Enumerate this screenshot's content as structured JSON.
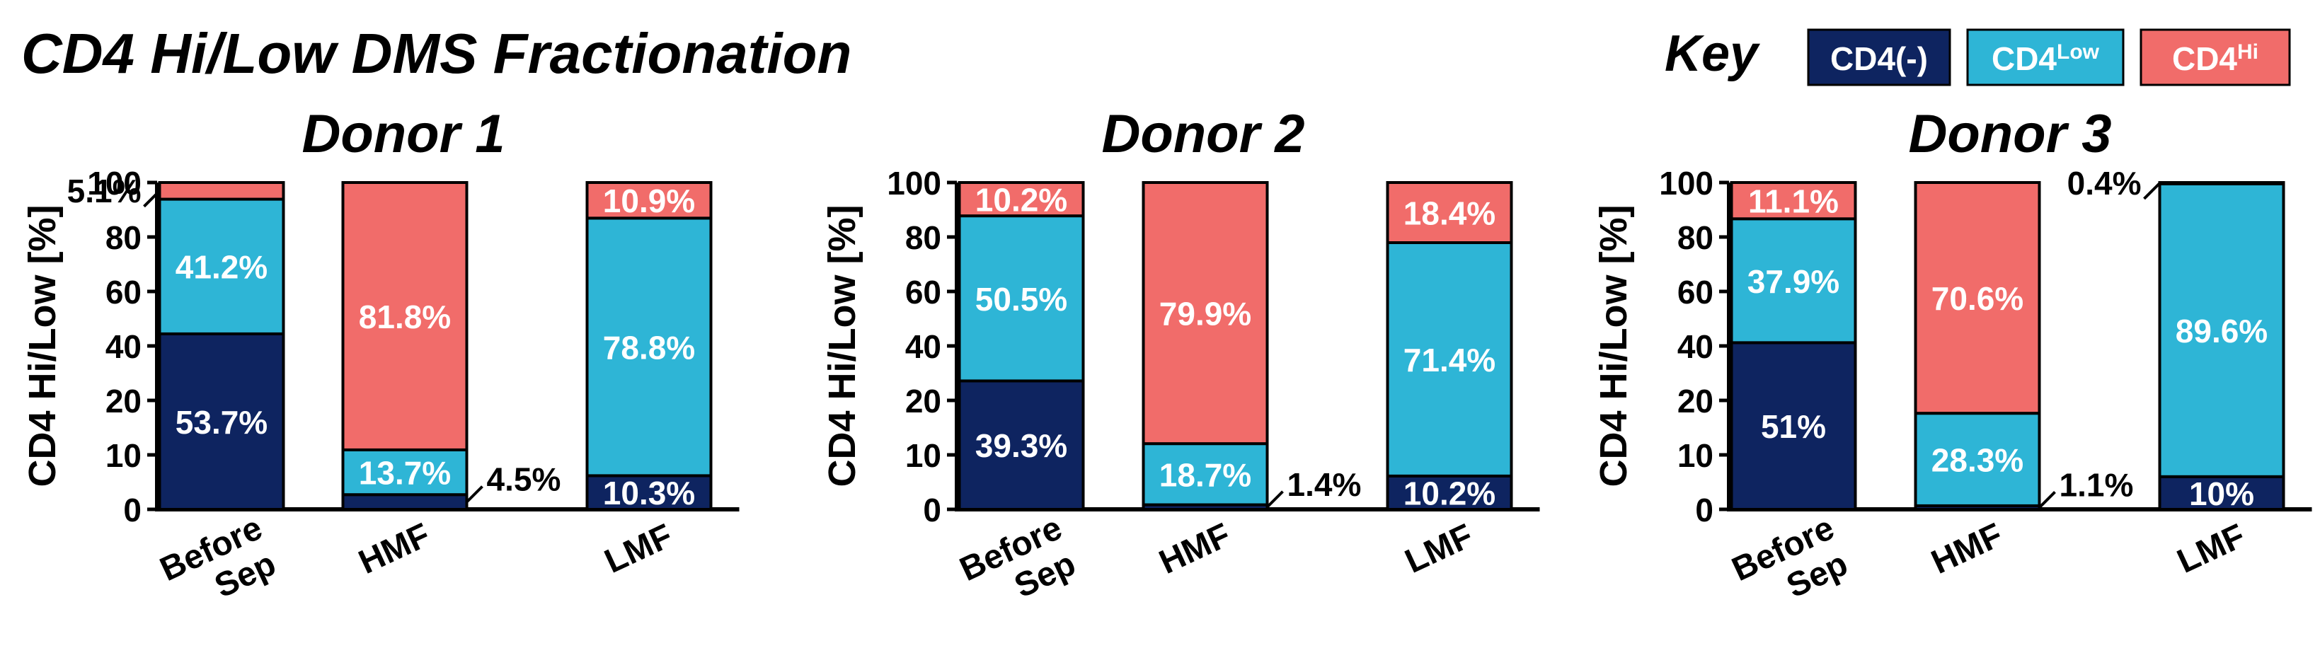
{
  "title": "CD4 Hi/Low DMS Fractionation",
  "key": {
    "label": "Key",
    "items": [
      {
        "base": "CD4(-)",
        "sup": "",
        "color": "#0e2460",
        "text_color": "#ffffff"
      },
      {
        "base": "CD4",
        "sup": "Low",
        "color": "#2eb5d6",
        "text_color": "#ffffff"
      },
      {
        "base": "CD4",
        "sup": "Hi",
        "color": "#f16c6a",
        "text_color": "#ffffff"
      }
    ]
  },
  "chart_data": [
    {
      "type": "bar",
      "stacked": true,
      "title": "Donor 1",
      "ylabel": "CD4 Hi/Low [%]",
      "yticks": [
        "0",
        "10",
        "20",
        "40",
        "60",
        "80",
        "100"
      ],
      "categories": [
        {
          "lines": [
            "Before",
            "Sep"
          ]
        },
        {
          "lines": [
            "HMF"
          ]
        },
        {
          "lines": [
            "LMF"
          ]
        }
      ],
      "series": [
        {
          "name": "CD4(-)",
          "color": "#0e2460",
          "values": [
            53.7,
            4.5,
            10.3
          ],
          "labels": [
            "53.7%",
            "4.5%",
            "10.3%"
          ]
        },
        {
          "name": "CD4Low",
          "color": "#2eb5d6",
          "values": [
            41.2,
            13.7,
            78.8
          ],
          "labels": [
            "41.2%",
            "13.7%",
            "78.8%"
          ]
        },
        {
          "name": "CD4Hi",
          "color": "#f16c6a",
          "values": [
            5.1,
            81.8,
            10.9
          ],
          "labels": [
            "5.1%",
            "81.8%",
            "10.9%"
          ]
        }
      ]
    },
    {
      "type": "bar",
      "stacked": true,
      "title": "Donor 2",
      "ylabel": "CD4 Hi/Low [%]",
      "yticks": [
        "0",
        "10",
        "20",
        "40",
        "60",
        "80",
        "100"
      ],
      "categories": [
        {
          "lines": [
            "Before",
            "Sep"
          ]
        },
        {
          "lines": [
            "HMF"
          ]
        },
        {
          "lines": [
            "LMF"
          ]
        }
      ],
      "series": [
        {
          "name": "CD4(-)",
          "color": "#0e2460",
          "values": [
            39.3,
            1.4,
            10.2
          ],
          "labels": [
            "39.3%",
            "1.4%",
            "10.2%"
          ]
        },
        {
          "name": "CD4Low",
          "color": "#2eb5d6",
          "values": [
            50.5,
            18.7,
            71.4
          ],
          "labels": [
            "50.5%",
            "18.7%",
            "71.4%"
          ]
        },
        {
          "name": "CD4Hi",
          "color": "#f16c6a",
          "values": [
            10.2,
            79.9,
            18.4
          ],
          "labels": [
            "10.2%",
            "79.9%",
            "18.4%"
          ]
        }
      ]
    },
    {
      "type": "bar",
      "stacked": true,
      "title": "Donor 3",
      "ylabel": "CD4 Hi/Low [%]",
      "yticks": [
        "0",
        "10",
        "20",
        "40",
        "60",
        "80",
        "100"
      ],
      "categories": [
        {
          "lines": [
            "Before",
            "Sep"
          ]
        },
        {
          "lines": [
            "HMF"
          ]
        },
        {
          "lines": [
            "LMF"
          ]
        }
      ],
      "series": [
        {
          "name": "CD4(-)",
          "color": "#0e2460",
          "values": [
            51,
            1.1,
            10
          ],
          "labels": [
            "51%",
            "1.1%",
            "10%"
          ]
        },
        {
          "name": "CD4Low",
          "color": "#2eb5d6",
          "values": [
            37.9,
            28.3,
            89.6
          ],
          "labels": [
            "37.9%",
            "28.3%",
            "89.6%"
          ]
        },
        {
          "name": "CD4Hi",
          "color": "#f16c6a",
          "values": [
            11.1,
            70.6,
            0.4
          ],
          "labels": [
            "11.1%",
            "70.6%",
            "0.4%"
          ]
        }
      ]
    }
  ]
}
